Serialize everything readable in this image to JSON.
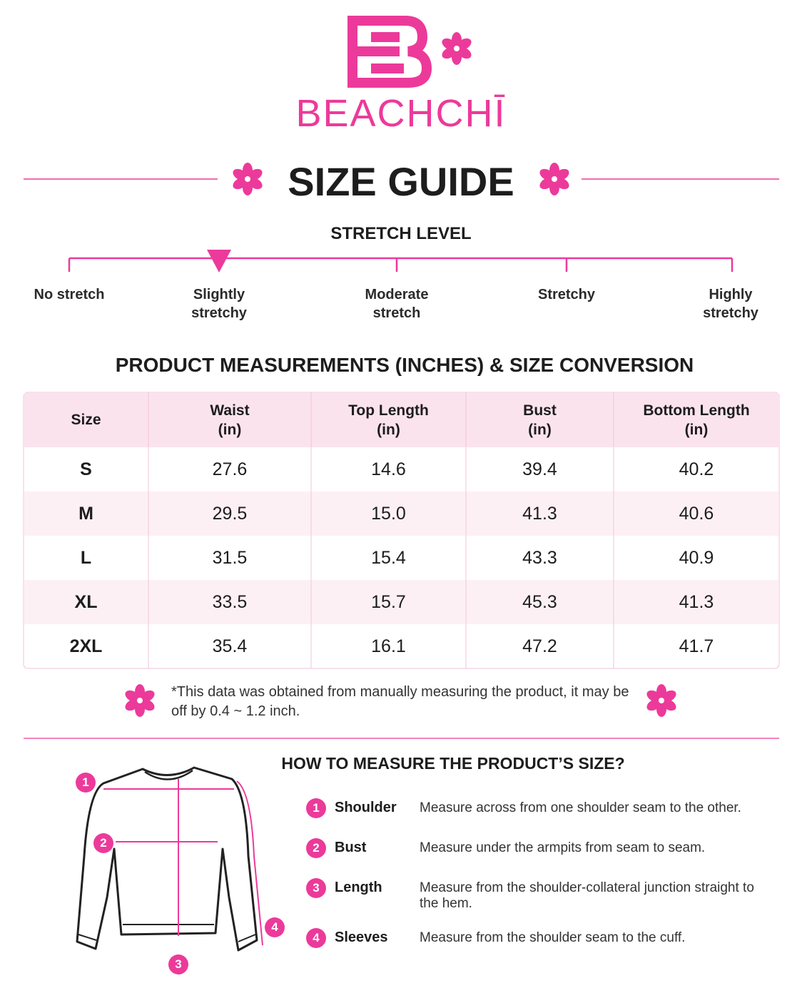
{
  "brand": {
    "name": "BEACHCHĪ"
  },
  "title": "SIZE GUIDE",
  "stretch_level": {
    "title": "STRETCH LEVEL",
    "levels": [
      "No stretch",
      "Slightly stretchy",
      "Moderate stretch",
      "Stretchy",
      "Highly stretchy"
    ]
  },
  "table": {
    "title": "PRODUCT MEASUREMENTS (INCHES) & SIZE CONVERSION",
    "header": [
      {
        "label": "Size"
      },
      {
        "label": "Waist",
        "unit": "(in)"
      },
      {
        "label": "Top Length",
        "unit": "(in)"
      },
      {
        "label": "Bust",
        "unit": "(in)"
      },
      {
        "label": "Bottom Length",
        "unit": "(in)"
      }
    ],
    "rows": [
      [
        "S",
        "27.6",
        "14.6",
        "39.4",
        "40.2"
      ],
      [
        "M",
        "29.5",
        "15.0",
        "41.3",
        "40.6"
      ],
      [
        "L",
        "31.5",
        "15.4",
        "43.3",
        "40.9"
      ],
      [
        "XL",
        "33.5",
        "15.7",
        "45.3",
        "41.3"
      ],
      [
        "2XL",
        "35.4",
        "16.1",
        "47.2",
        "41.7"
      ]
    ]
  },
  "note": "*This data was obtained from manually measuring the product, it may be off by 0.4 ~ 1.2 inch.",
  "how_to": {
    "title": "HOW TO MEASURE THE PRODUCT’S SIZE?",
    "steps": [
      {
        "number": "1",
        "name": "Shoulder",
        "description": "Measure across from one shoulder seam to the other."
      },
      {
        "number": "2",
        "name": "Bust",
        "description": "Measure under the armpits from seam to seam."
      },
      {
        "number": "3",
        "name": "Length",
        "description": "Measure from the shoulder-collateral junction straight to the hem."
      },
      {
        "number": "4",
        "name": "Sleeves",
        "description": "Measure from the shoulder seam to the cuff."
      }
    ]
  }
}
